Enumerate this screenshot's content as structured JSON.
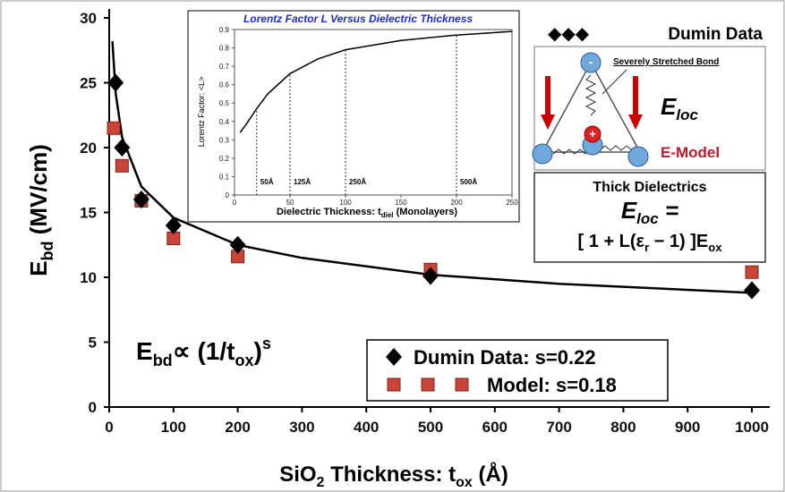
{
  "chart_data": [
    {
      "type": "scatter",
      "x_label": {
        "a": "SiO",
        "b": "2",
        "c": " Thickness: t",
        "d": "ox",
        "e": " (Å)"
      },
      "y_label": {
        "a": "E",
        "b": "bd",
        "c": " (MV/cm)"
      },
      "formula": {
        "a": "E",
        "b": "bd",
        "c": "∝ (1/t",
        "d": "ox",
        "e": ")",
        "f": "s"
      },
      "xlim": [
        0,
        1000
      ],
      "xticks": [
        0,
        100,
        200,
        300,
        400,
        500,
        600,
        700,
        800,
        900,
        1000
      ],
      "ylim": [
        0,
        30
      ],
      "yticks": [
        0,
        5,
        10,
        15,
        20,
        25,
        30
      ],
      "series": [
        {
          "name": "Dumin Data: s=0.22",
          "color": "#000000",
          "marker": "diamond",
          "x": [
            10,
            20,
            50,
            100,
            200,
            500,
            1000
          ],
          "values": [
            25,
            20,
            16,
            14,
            12.5,
            10.1,
            9
          ]
        },
        {
          "name": "Model: s=0.18",
          "color": "#c9453a",
          "marker": "square",
          "x": [
            7,
            20,
            50,
            100,
            200,
            500,
            1000
          ],
          "values": [
            21.5,
            18.6,
            15.9,
            13,
            11.6,
            10.6,
            10.4
          ]
        }
      ],
      "curve": {
        "color": "#000000",
        "x": [
          5,
          10,
          20,
          50,
          100,
          200,
          300,
          500,
          700,
          1000
        ],
        "values": [
          28.2,
          24.2,
          20.8,
          17,
          14.6,
          12.5,
          11.5,
          10.2,
          9.5,
          8.8
        ]
      }
    },
    {
      "type": "line",
      "title": "Lorentz Factor L Versus Dielectric Thickness",
      "x_label": {
        "a": "Dielectric Thickness: t",
        "b": "diel",
        "c": " (Monolayers)"
      },
      "y_label": "Lorentz Factor:  <L>",
      "xlim": [
        0,
        250
      ],
      "xticks": [
        0,
        50,
        100,
        150,
        200,
        250
      ],
      "ylim": [
        0,
        0.9
      ],
      "yticks": [
        0,
        0.1,
        0.2,
        0.3,
        0.4,
        0.5,
        0.6,
        0.7,
        0.8,
        0.9
      ],
      "color": "#000000",
      "x": [
        5,
        10,
        20,
        30,
        50,
        75,
        100,
        150,
        200,
        250
      ],
      "values": [
        0.34,
        0.38,
        0.47,
        0.55,
        0.66,
        0.74,
        0.79,
        0.84,
        0.87,
        0.89
      ],
      "markers": [
        {
          "x": 20,
          "label": "50Å"
        },
        {
          "x": 50,
          "label": "125Å"
        },
        {
          "x": 100,
          "label": "250Å"
        },
        {
          "x": 200,
          "label": "500Å"
        }
      ]
    }
  ],
  "diagram": {
    "legend": "Dumin Data",
    "bond": "Severely Stretched Bond",
    "eloc": {
      "a": "E",
      "b": "loc"
    },
    "model": "E-Model",
    "box_title": "Thick Dielectrics",
    "eq1": {
      "a": "E",
      "b": "loc",
      "c": " ="
    },
    "eq2": {
      "a": "[ 1 + L(ε",
      "b": "r",
      "c": " − 1) ]E",
      "d": "ox"
    }
  }
}
